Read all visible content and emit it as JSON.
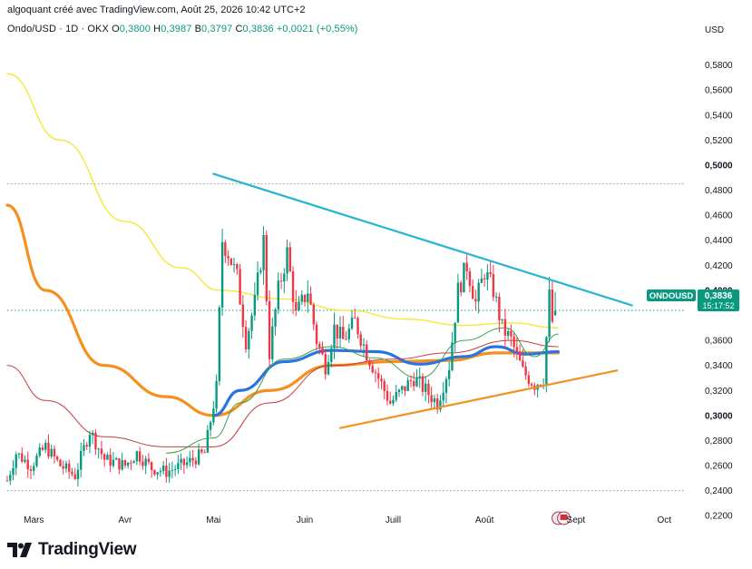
{
  "header": {
    "attribution": "algoquant créé avec TradingView.com, Août 25, 2026 10:42 UTC+2"
  },
  "legend": {
    "symbol": "Ondo/USD · 1D · OKX",
    "o_label": "O",
    "o_value": "0,3800",
    "h_label": "H",
    "h_value": "0,3987",
    "b_label": "B",
    "b_value": "0,3797",
    "c_label": "C",
    "c_value": "0,3836",
    "change": "+0,0021 (+0,55%)"
  },
  "price_axis": {
    "currency": "USD",
    "ticks": [
      "0,5800",
      "0,5600",
      "0,5400",
      "0,5200",
      "0,5000",
      "0,4800",
      "0,4600",
      "0,4400",
      "0,4200",
      "0,4000",
      "0,3600",
      "0,3400",
      "0,3200",
      "0,3000",
      "0,2800",
      "0,2600",
      "0,2400",
      "0,2200"
    ],
    "bold_ticks": [
      "0,5000",
      "0,4000",
      "0,3000"
    ]
  },
  "time_axis": {
    "labels": [
      "Mars",
      "Avr",
      "Mai",
      "Juin",
      "Juill",
      "Août",
      "Sept",
      "Oct"
    ]
  },
  "price_tag": {
    "symbol": "ONDOUSD",
    "price": "0,3836",
    "countdown": "15:17:52",
    "color": "#089981"
  },
  "footer": {
    "brand": "TradingView"
  },
  "chart_data": {
    "type": "candlestick",
    "symbol": "Ondo/USD",
    "timeframe": "1D",
    "exchange": "OKX",
    "y_range": [
      0.21,
      0.6
    ],
    "x_range": [
      "2026-02-20",
      "2026-10-08"
    ],
    "last_close": 0.3836,
    "colors": {
      "up": "#089981",
      "down": "#f23645"
    },
    "horizontal_levels": [
      0.485,
      0.384,
      0.24
    ],
    "trendlines": [
      {
        "color": "#26b5d0",
        "from": [
          "2026-05-01",
          0.493
        ],
        "to": [
          "2026-09-20",
          0.388
        ]
      },
      {
        "color": "#f29020",
        "from": [
          "2026-06-13",
          0.29
        ],
        "to": [
          "2026-09-15",
          0.336
        ]
      }
    ],
    "moving_averages": [
      {
        "color": "#f5e83a",
        "points": [
          [
            "2026-02-20",
            0.573
          ],
          [
            "2026-03-10",
            0.52
          ],
          [
            "2026-04-01",
            0.455
          ],
          [
            "2026-04-20",
            0.418
          ],
          [
            "2026-05-03",
            0.4
          ],
          [
            "2026-05-25",
            0.393
          ],
          [
            "2026-06-15",
            0.384
          ],
          [
            "2026-07-05",
            0.377
          ],
          [
            "2026-07-25",
            0.372
          ],
          [
            "2026-08-10",
            0.374
          ],
          [
            "2026-08-26",
            0.37
          ]
        ]
      },
      {
        "color": "#f5901e",
        "points": [
          [
            "2026-02-20",
            0.468
          ],
          [
            "2026-03-05",
            0.4
          ],
          [
            "2026-03-25",
            0.34
          ],
          [
            "2026-04-15",
            0.315
          ],
          [
            "2026-05-01",
            0.3
          ],
          [
            "2026-05-20",
            0.32
          ],
          [
            "2026-06-10",
            0.34
          ],
          [
            "2026-07-01",
            0.343
          ],
          [
            "2026-07-20",
            0.344
          ],
          [
            "2026-08-05",
            0.35
          ],
          [
            "2026-08-26",
            0.35
          ]
        ]
      },
      {
        "color": "#2a74e0",
        "points": [
          [
            "2026-05-01",
            0.3
          ],
          [
            "2026-05-10",
            0.32
          ],
          [
            "2026-05-25",
            0.343
          ],
          [
            "2026-06-10",
            0.352
          ],
          [
            "2026-06-25",
            0.351
          ],
          [
            "2026-07-10",
            0.341
          ],
          [
            "2026-07-25",
            0.347
          ],
          [
            "2026-08-05",
            0.355
          ],
          [
            "2026-08-15",
            0.349
          ],
          [
            "2026-08-26",
            0.351
          ]
        ]
      },
      {
        "color": "#c93c3c",
        "points": [
          [
            "2026-02-20",
            0.34
          ],
          [
            "2026-03-05",
            0.312
          ],
          [
            "2026-03-25",
            0.283
          ],
          [
            "2026-04-15",
            0.275
          ],
          [
            "2026-05-01",
            0.275
          ],
          [
            "2026-05-20",
            0.31
          ],
          [
            "2026-06-10",
            0.34
          ],
          [
            "2026-07-01",
            0.345
          ],
          [
            "2026-07-20",
            0.35
          ],
          [
            "2026-08-10",
            0.36
          ],
          [
            "2026-08-26",
            0.355
          ]
        ]
      },
      {
        "color": "#43a047",
        "points": [
          [
            "2026-04-15",
            0.27
          ],
          [
            "2026-05-01",
            0.282
          ],
          [
            "2026-05-10",
            0.31
          ],
          [
            "2026-05-25",
            0.345
          ],
          [
            "2026-06-10",
            0.355
          ],
          [
            "2026-06-25",
            0.346
          ],
          [
            "2026-07-10",
            0.33
          ],
          [
            "2026-07-25",
            0.36
          ],
          [
            "2026-08-08",
            0.37
          ],
          [
            "2026-08-18",
            0.347
          ],
          [
            "2026-08-26",
            0.365
          ]
        ]
      }
    ],
    "price_path": [
      [
        "2026-02-20",
        0.248
      ],
      [
        "2026-02-23",
        0.27
      ],
      [
        "2026-02-28",
        0.26
      ],
      [
        "2026-03-05",
        0.275
      ],
      [
        "2026-03-10",
        0.26
      ],
      [
        "2026-03-15",
        0.252
      ],
      [
        "2026-03-20",
        0.288
      ],
      [
        "2026-03-25",
        0.265
      ],
      [
        "2026-04-01",
        0.26
      ],
      [
        "2026-04-05",
        0.27
      ],
      [
        "2026-04-10",
        0.258
      ],
      [
        "2026-04-15",
        0.255
      ],
      [
        "2026-04-22",
        0.262
      ],
      [
        "2026-04-28",
        0.27
      ],
      [
        "2026-05-02",
        0.322
      ],
      [
        "2026-05-04",
        0.44
      ],
      [
        "2026-05-06",
        0.43
      ],
      [
        "2026-05-09",
        0.41
      ],
      [
        "2026-05-12",
        0.36
      ],
      [
        "2026-05-15",
        0.39
      ],
      [
        "2026-05-18",
        0.44
      ],
      [
        "2026-05-20",
        0.35
      ],
      [
        "2026-05-23",
        0.4
      ],
      [
        "2026-05-26",
        0.43
      ],
      [
        "2026-05-29",
        0.38
      ],
      [
        "2026-06-02",
        0.4
      ],
      [
        "2026-06-05",
        0.36
      ],
      [
        "2026-06-08",
        0.34
      ],
      [
        "2026-06-11",
        0.37
      ],
      [
        "2026-06-14",
        0.36
      ],
      [
        "2026-06-18",
        0.375
      ],
      [
        "2026-06-22",
        0.35
      ],
      [
        "2026-06-26",
        0.33
      ],
      [
        "2026-06-30",
        0.31
      ],
      [
        "2026-07-04",
        0.32
      ],
      [
        "2026-07-08",
        0.33
      ],
      [
        "2026-07-12",
        0.32
      ],
      [
        "2026-07-16",
        0.31
      ],
      [
        "2026-07-20",
        0.34
      ],
      [
        "2026-07-23",
        0.4
      ],
      [
        "2026-07-26",
        0.42
      ],
      [
        "2026-07-29",
        0.39
      ],
      [
        "2026-08-01",
        0.415
      ],
      [
        "2026-08-04",
        0.4
      ],
      [
        "2026-08-07",
        0.37
      ],
      [
        "2026-08-10",
        0.36
      ],
      [
        "2026-08-14",
        0.335
      ],
      [
        "2026-08-18",
        0.325
      ],
      [
        "2026-08-21",
        0.33
      ],
      [
        "2026-08-23",
        0.395
      ],
      [
        "2026-08-24",
        0.375
      ],
      [
        "2026-08-25",
        0.3836
      ]
    ],
    "event_marker": {
      "x": "2026-08-27",
      "y": 0.218
    }
  }
}
